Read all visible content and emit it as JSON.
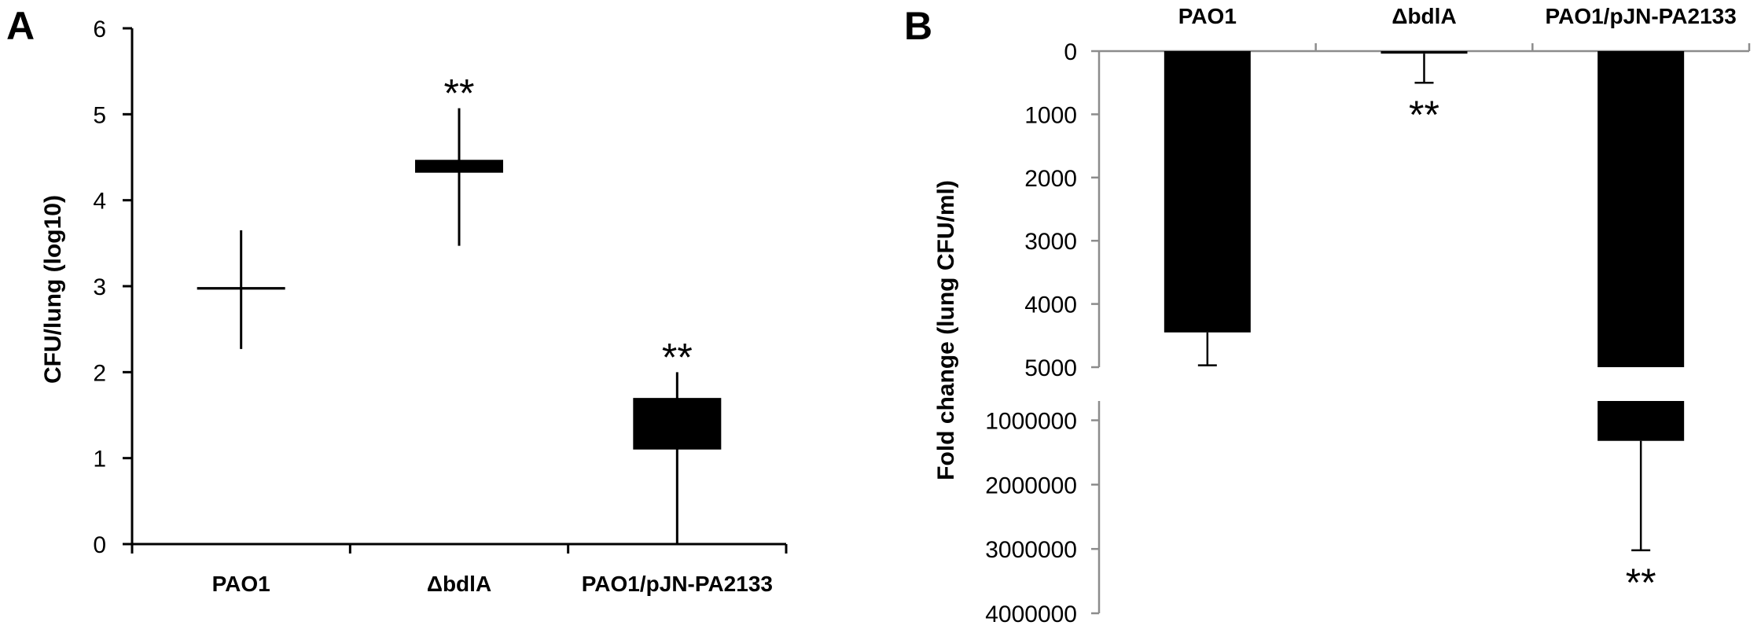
{
  "chart_data": [
    {
      "panel": "A",
      "type": "box",
      "ylabel": "CFU/lung (log10)",
      "ylim": [
        0,
        6
      ],
      "yticks": [
        "0",
        "1",
        "2",
        "3",
        "4",
        "5",
        "6"
      ],
      "categories": [
        "PAO1",
        "ΔbdlA",
        "PAO1/pJN-PA2133"
      ],
      "boxes": [
        {
          "min": 2.27,
          "q1": 2.96,
          "q3": 2.99,
          "max": 3.65,
          "label": ""
        },
        {
          "min": 3.47,
          "q1": 4.32,
          "q3": 4.47,
          "max": 5.07,
          "label": "**"
        },
        {
          "min": 0.0,
          "q1": 1.1,
          "q3": 1.7,
          "max": 2.0,
          "label": "**"
        }
      ]
    },
    {
      "panel": "B",
      "type": "bar",
      "ylabel": "Fold change (lung CFU/ml)",
      "orientation": "inverted-broken-axis",
      "categories": [
        "PAO1",
        "ΔbdlA",
        "PAO1/pJN-PA2133"
      ],
      "upper_segment": {
        "ylim": [
          0,
          5000
        ],
        "yticks": [
          "0",
          "1000",
          "2000",
          "3000",
          "4000",
          "5000"
        ]
      },
      "lower_segment": {
        "ylim": [
          700000,
          4000000
        ],
        "yticks": [
          "1000000",
          "2000000",
          "3000000",
          "4000000"
        ]
      },
      "values": [
        4450,
        40,
        1320000
      ],
      "errors": [
        520,
        460,
        1700000
      ],
      "labels": [
        "",
        "**",
        "**"
      ]
    }
  ]
}
